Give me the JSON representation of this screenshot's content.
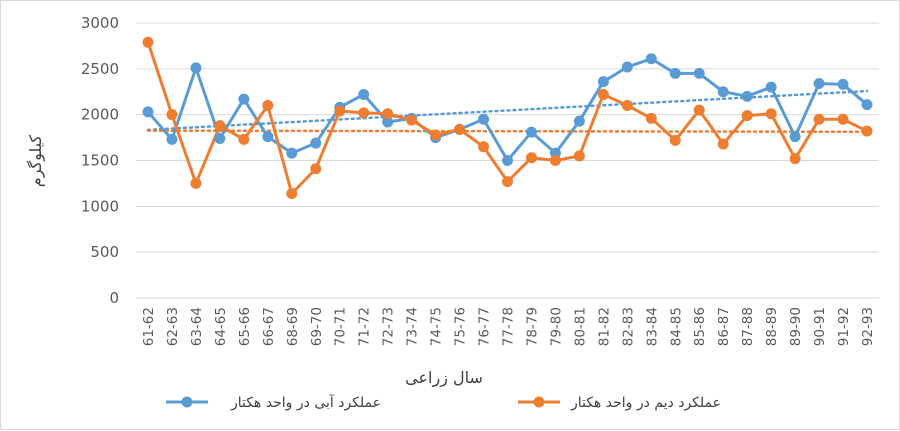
{
  "chart_data": {
    "type": "line",
    "xlabel": "سال زراعی",
    "ylabel": "کیلوگرم",
    "ylim": [
      0,
      3000
    ],
    "yticks": [
      0,
      500,
      1000,
      1500,
      2000,
      2500,
      3000
    ],
    "grid": true,
    "legend_position": "bottom",
    "categories": [
      "61-62",
      "62-63",
      "63-64",
      "64-65",
      "65-66",
      "66-67",
      "68-69",
      "69-70",
      "70-71",
      "71-72",
      "72-73",
      "73-74",
      "74-75",
      "75-76",
      "76-77",
      "77-78",
      "78-79",
      "79-80",
      "80-81",
      "81-82",
      "82-83",
      "83-84",
      "84-85",
      "85-86",
      "86-87",
      "87-88",
      "88-89",
      "89-90",
      "90-91",
      "91-92",
      "92-93"
    ],
    "series": [
      {
        "name": "عملکرد آبی در واحد هکتار",
        "color": "#5B9BD5",
        "trendline": true,
        "values": [
          2030,
          1730,
          2510,
          1740,
          2170,
          1760,
          1580,
          1690,
          2080,
          2220,
          1920,
          1960,
          1750,
          1840,
          1950,
          1500,
          1810,
          1580,
          1930,
          2360,
          2520,
          2610,
          2450,
          2450,
          2250,
          2200,
          2300,
          1760,
          2340,
          2330,
          2110
        ]
      },
      {
        "name": "عملکرد دیم در واحد هکتار",
        "color": "#ED7D31",
        "trendline": true,
        "values": [
          2790,
          2000,
          1250,
          1880,
          1730,
          2100,
          1140,
          1410,
          2040,
          2020,
          2010,
          1940,
          1780,
          1840,
          1650,
          1270,
          1530,
          1500,
          1550,
          2220,
          2100,
          1960,
          1720,
          2050,
          1680,
          1990,
          2010,
          1520,
          1950,
          1950,
          1820
        ]
      }
    ]
  }
}
